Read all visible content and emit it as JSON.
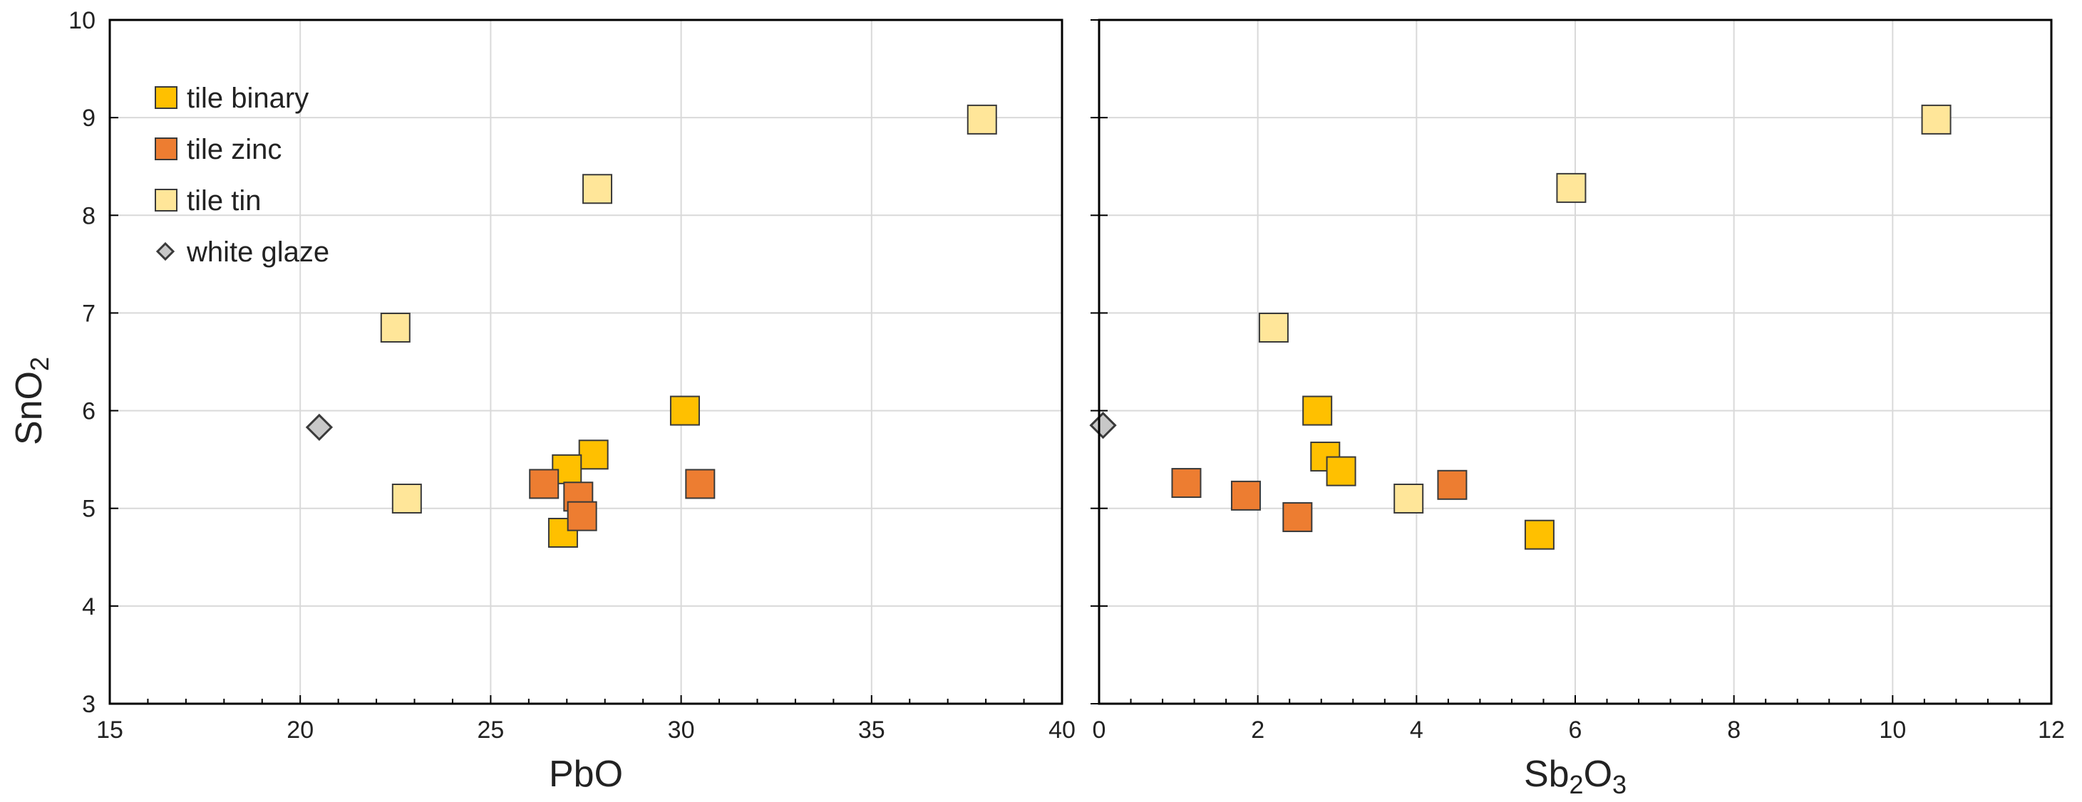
{
  "colors": {
    "tile_binary": "#ffc000",
    "tile_zinc": "#ed7d31",
    "tile_tin": "#ffe699",
    "white_glaze": "#c8c8c8",
    "marker_stroke": "#3a3a3a",
    "grid": "#d9d9d9",
    "frame": "#000000"
  },
  "legend": {
    "placement": "top-left",
    "items": [
      {
        "key": "tile_binary",
        "label": "tile binary",
        "marker": "square"
      },
      {
        "key": "tile_zinc",
        "label": "tile zinc",
        "marker": "square"
      },
      {
        "key": "tile_tin",
        "label": "tile tin",
        "marker": "square"
      },
      {
        "key": "white_glaze",
        "label": "white glaze",
        "marker": "diamond"
      }
    ]
  },
  "chart_data": [
    {
      "type": "scatter",
      "xlabel": {
        "main": "PbO",
        "sub": ""
      },
      "ylabel": {
        "main": "SnO",
        "sub": "2"
      },
      "xlim": [
        15,
        40
      ],
      "ylim": [
        3,
        10
      ],
      "xticks": [
        15,
        20,
        25,
        30,
        35,
        40
      ],
      "yticks": [
        3,
        4,
        5,
        6,
        7,
        8,
        9,
        10
      ],
      "grid": true,
      "series": [
        {
          "name": "tile binary",
          "key": "tile_binary",
          "marker": "square",
          "points": [
            [
              30.1,
              6.0
            ],
            [
              27.7,
              5.55
            ],
            [
              27.0,
              5.4
            ],
            [
              26.9,
              4.75
            ]
          ]
        },
        {
          "name": "tile zinc",
          "key": "tile_zinc",
          "marker": "square",
          "points": [
            [
              26.4,
              5.25
            ],
            [
              27.3,
              5.12
            ],
            [
              27.4,
              4.92
            ],
            [
              30.5,
              5.25
            ]
          ]
        },
        {
          "name": "tile tin",
          "key": "tile_tin",
          "marker": "square",
          "points": [
            [
              37.9,
              8.98
            ],
            [
              27.8,
              8.27
            ],
            [
              22.5,
              6.85
            ],
            [
              22.8,
              5.1
            ]
          ]
        },
        {
          "name": "white glaze",
          "key": "white_glaze",
          "marker": "diamond",
          "points": [
            [
              20.5,
              5.83
            ]
          ]
        }
      ]
    },
    {
      "type": "scatter",
      "xlabel": {
        "main": "Sb",
        "sub1": "2",
        "mid": "O",
        "sub2": "3"
      },
      "xlim": [
        0,
        12
      ],
      "ylim": [
        3,
        10
      ],
      "xticks": [
        0,
        2,
        4,
        6,
        8,
        10,
        12
      ],
      "yticks": [
        3,
        4,
        5,
        6,
        7,
        8,
        9,
        10
      ],
      "grid": true,
      "series": [
        {
          "name": "tile binary",
          "key": "tile_binary",
          "marker": "square",
          "points": [
            [
              2.75,
              6.0
            ],
            [
              2.85,
              5.53
            ],
            [
              3.05,
              5.38
            ],
            [
              5.55,
              4.73
            ]
          ]
        },
        {
          "name": "tile zinc",
          "key": "tile_zinc",
          "marker": "square",
          "points": [
            [
              1.1,
              5.26
            ],
            [
              1.85,
              5.13
            ],
            [
              2.5,
              4.91
            ],
            [
              4.45,
              5.24
            ]
          ]
        },
        {
          "name": "tile tin",
          "key": "tile_tin",
          "marker": "square",
          "points": [
            [
              10.55,
              8.98
            ],
            [
              5.95,
              8.28
            ],
            [
              2.2,
              6.85
            ],
            [
              3.9,
              5.1
            ]
          ]
        },
        {
          "name": "white glaze",
          "key": "white_glaze",
          "marker": "diamond",
          "points": [
            [
              0.05,
              5.85
            ]
          ]
        }
      ]
    }
  ]
}
